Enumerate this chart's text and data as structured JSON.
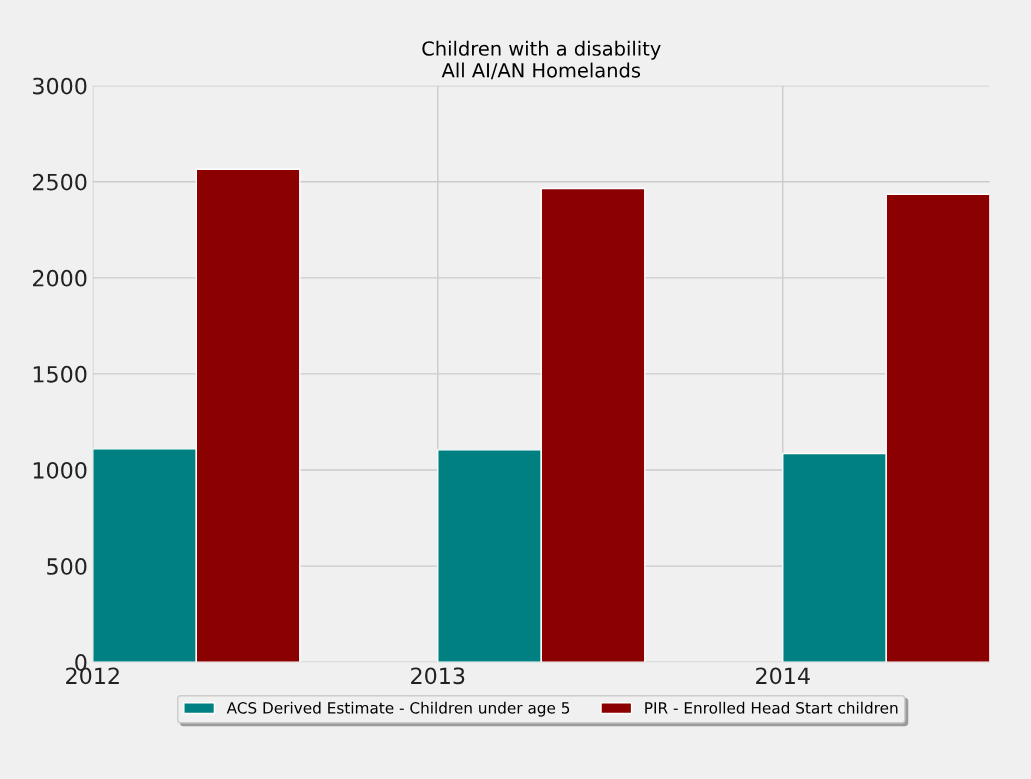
{
  "chart_data": {
    "type": "bar",
    "title": "Children with a disability\nAll AI/AN Homelands",
    "x": [
      2012,
      2013,
      2014
    ],
    "series": [
      {
        "name": "ACS Derived Estimate - Children under age 5",
        "color": "#008080",
        "values": [
          1110,
          1105,
          1085
        ]
      },
      {
        "name": "PIR - Enrolled Head Start children",
        "color": "#8b0000",
        "values": [
          2565,
          2465,
          2435
        ]
      }
    ],
    "xlim": [
      2012,
      2014.6
    ],
    "xticks": [
      2012,
      2013,
      2014
    ],
    "ylim": [
      0,
      3000
    ],
    "yticks": [
      0,
      500,
      1000,
      1500,
      2000,
      2500,
      3000
    ],
    "grid": true,
    "legend": "bottom"
  }
}
